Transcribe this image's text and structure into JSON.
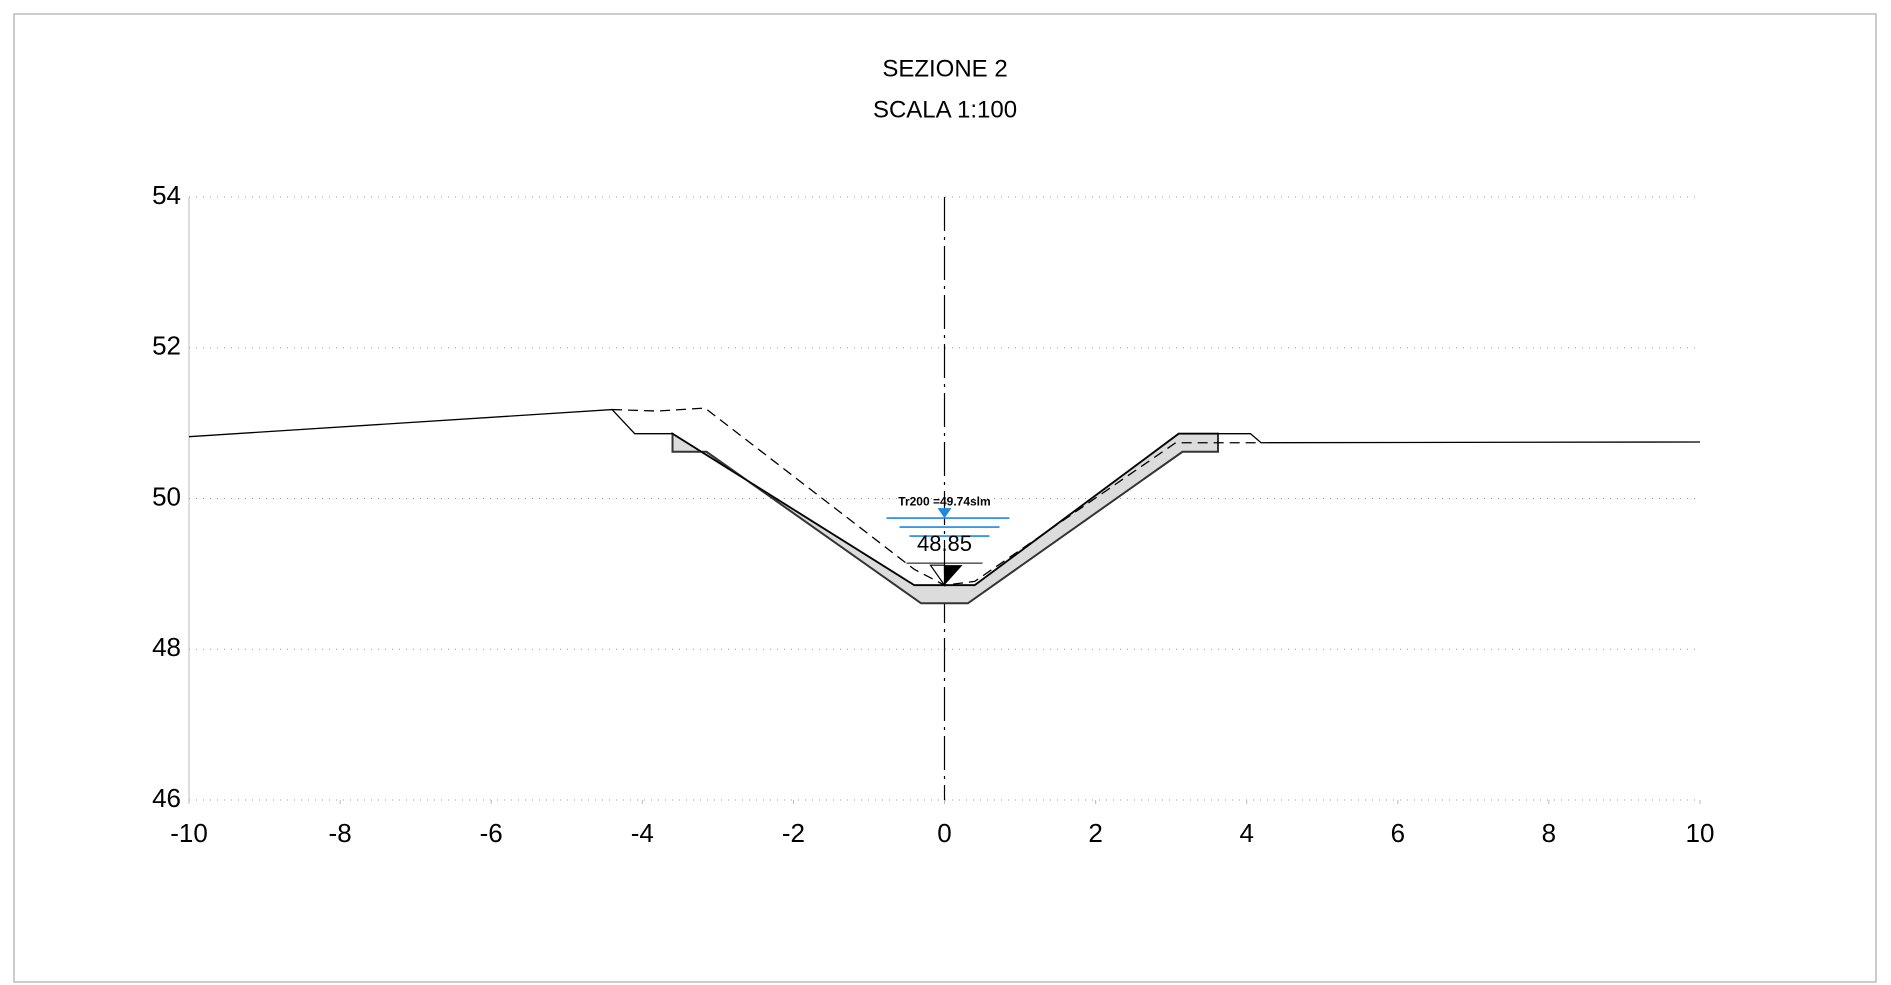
{
  "chart_data": {
    "type": "line",
    "title": "SEZIONE 2",
    "subtitle": "SCALA 1:100",
    "xlim": [
      -10,
      10
    ],
    "xticks": [
      -10,
      -8,
      -6,
      -4,
      -2,
      0,
      2,
      4,
      6,
      8,
      10
    ],
    "ylim": [
      46,
      54
    ],
    "yticks": [
      46,
      48,
      50,
      52,
      54
    ],
    "grid": true,
    "centerline": 0,
    "series": [
      {
        "style": "filled",
        "color": "#333333",
        "fill": "#dcdcdc",
        "x": [
          -3.6,
          -0.4,
          0.4,
          3.1,
          3.62,
          3.62,
          3.15,
          0.31,
          -0.31,
          -3.15,
          -3.6
        ],
        "values": [
          50.86,
          48.85,
          48.85,
          50.86,
          50.86,
          50.62,
          50.62,
          48.61,
          48.61,
          50.62,
          50.62
        ]
      },
      {
        "style": "solid",
        "color": "#000000",
        "x": [
          -10,
          -4.4,
          -4.1,
          -3.6,
          -0.4,
          0.4,
          3.1,
          3.62,
          4.05,
          4.19,
          10
        ],
        "values": [
          50.82,
          51.18,
          50.86,
          50.86,
          48.85,
          48.85,
          50.86,
          50.86,
          50.86,
          50.74,
          50.75
        ]
      },
      {
        "style": "dashed",
        "color": "#000000",
        "x": [
          -4.4,
          -3.8,
          -3.17,
          -0.4,
          0,
          0.4,
          3.06,
          4.19
        ],
        "values": [
          51.18,
          51.16,
          51.2,
          49.06,
          48.85,
          48.9,
          50.74,
          50.74
        ]
      }
    ],
    "annotations": [
      {
        "text": "Tr200 =49.74slm",
        "x": 0,
        "y": 49.74,
        "color": "#1e88e5",
        "symbol": "water"
      },
      {
        "text": "48.85",
        "x": 0,
        "y": 48.85,
        "color": "#000000",
        "symbol": "level"
      }
    ]
  }
}
